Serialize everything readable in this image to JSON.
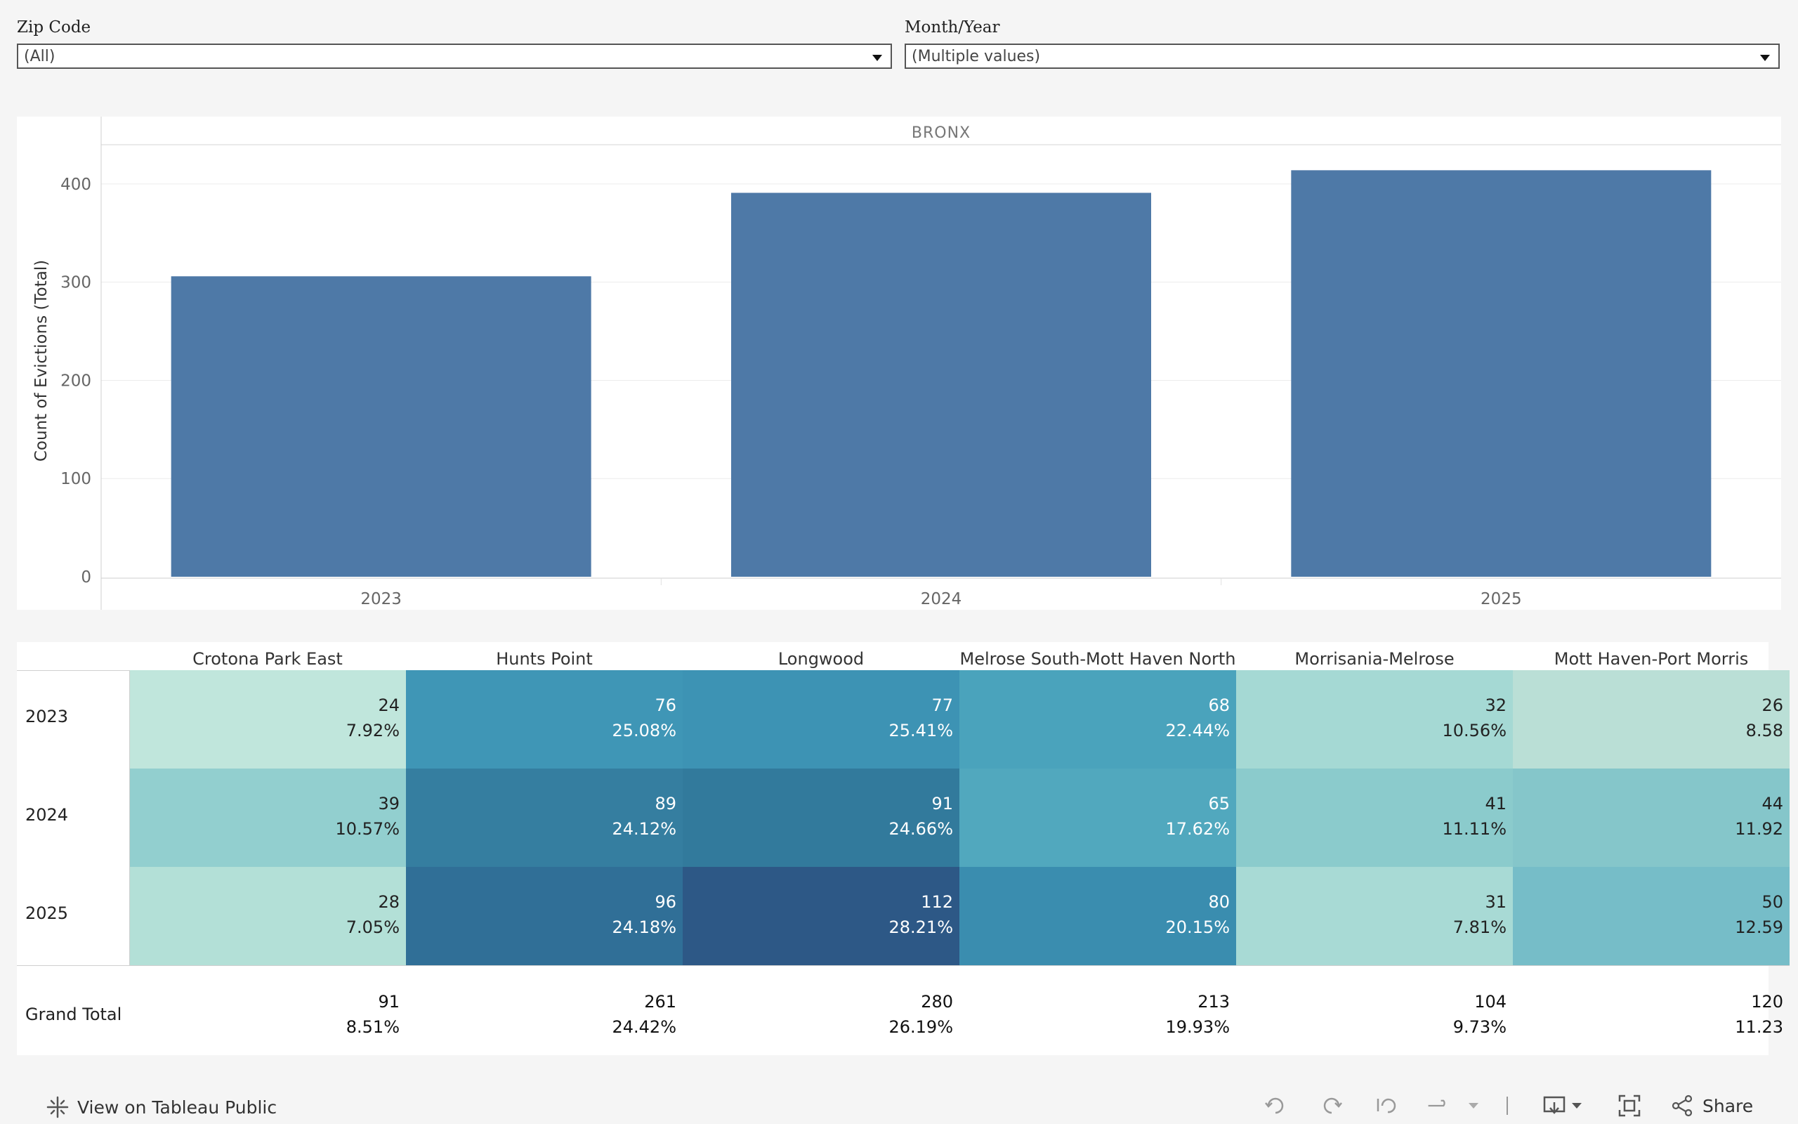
{
  "filters": {
    "zip": {
      "label": "Zip Code",
      "value": "(All)"
    },
    "month": {
      "label": "Month/Year",
      "value": "(Multiple values)"
    }
  },
  "chart_data": {
    "type": "bar",
    "facet": "BRONX",
    "categories": [
      "2023",
      "2024",
      "2025"
    ],
    "values": [
      306,
      391,
      414
    ],
    "ylabel": "Count of Evictions (Total)",
    "yticks": [
      0,
      100,
      200,
      300,
      400
    ],
    "ylim": [
      0,
      440
    ],
    "bar_color": "#4e79a7",
    "grid": true
  },
  "table": {
    "columns": [
      "Crotona Park East",
      "Hunts Point",
      "Longwood",
      "Melrose South-Mott Haven North",
      "Morrisania-Melrose",
      "Mott Haven-Port Morris"
    ],
    "rows": [
      {
        "label": "2023",
        "cells": [
          {
            "count": "24",
            "pct": "7.92%",
            "bg": "#c0e6dc",
            "fg": "#222"
          },
          {
            "count": "76",
            "pct": "25.08%",
            "bg": "#3f96b6",
            "fg": "#ffffff"
          },
          {
            "count": "77",
            "pct": "25.41%",
            "bg": "#3d93b4",
            "fg": "#ffffff"
          },
          {
            "count": "68",
            "pct": "22.44%",
            "bg": "#4aa3bc",
            "fg": "#ffffff"
          },
          {
            "count": "32",
            "pct": "10.56%",
            "bg": "#a5d9d4",
            "fg": "#222"
          },
          {
            "count": "26",
            "pct": "8.58",
            "bg": "#badfd6",
            "fg": "#222"
          }
        ]
      },
      {
        "label": "2024",
        "cells": [
          {
            "count": "39",
            "pct": "10.57%",
            "bg": "#92cfcf",
            "fg": "#222"
          },
          {
            "count": "89",
            "pct": "24.12%",
            "bg": "#357ea0",
            "fg": "#ffffff"
          },
          {
            "count": "91",
            "pct": "24.66%",
            "bg": "#327a9c",
            "fg": "#ffffff"
          },
          {
            "count": "65",
            "pct": "17.62%",
            "bg": "#51a8be",
            "fg": "#ffffff"
          },
          {
            "count": "41",
            "pct": "11.11%",
            "bg": "#8bcbcc",
            "fg": "#222"
          },
          {
            "count": "44",
            "pct": "11.92",
            "bg": "#85c6ca",
            "fg": "#222"
          }
        ]
      },
      {
        "label": "2025",
        "cells": [
          {
            "count": "28",
            "pct": "7.05%",
            "bg": "#b3e0d7",
            "fg": "#222"
          },
          {
            "count": "96",
            "pct": "24.18%",
            "bg": "#306f97",
            "fg": "#ffffff"
          },
          {
            "count": "112",
            "pct": "28.21%",
            "bg": "#2d5886",
            "fg": "#ffffff"
          },
          {
            "count": "80",
            "pct": "20.15%",
            "bg": "#3a8daf",
            "fg": "#ffffff"
          },
          {
            "count": "31",
            "pct": "7.81%",
            "bg": "#a8dad5",
            "fg": "#222"
          },
          {
            "count": "50",
            "pct": "12.59",
            "bg": "#76bdc8",
            "fg": "#222"
          }
        ]
      }
    ],
    "grand_total": {
      "label": "Grand Total",
      "cells": [
        {
          "count": "91",
          "pct": "8.51%"
        },
        {
          "count": "261",
          "pct": "24.42%"
        },
        {
          "count": "280",
          "pct": "26.19%"
        },
        {
          "count": "213",
          "pct": "19.93%"
        },
        {
          "count": "104",
          "pct": "9.73%"
        },
        {
          "count": "120",
          "pct": "11.23"
        }
      ]
    }
  },
  "footer": {
    "view_link": "View on Tableau Public",
    "share": "Share",
    "icons": [
      "undo-icon",
      "redo-icon",
      "revert-icon",
      "pause-icon",
      "download-icon",
      "fullscreen-icon",
      "share-icon"
    ]
  }
}
